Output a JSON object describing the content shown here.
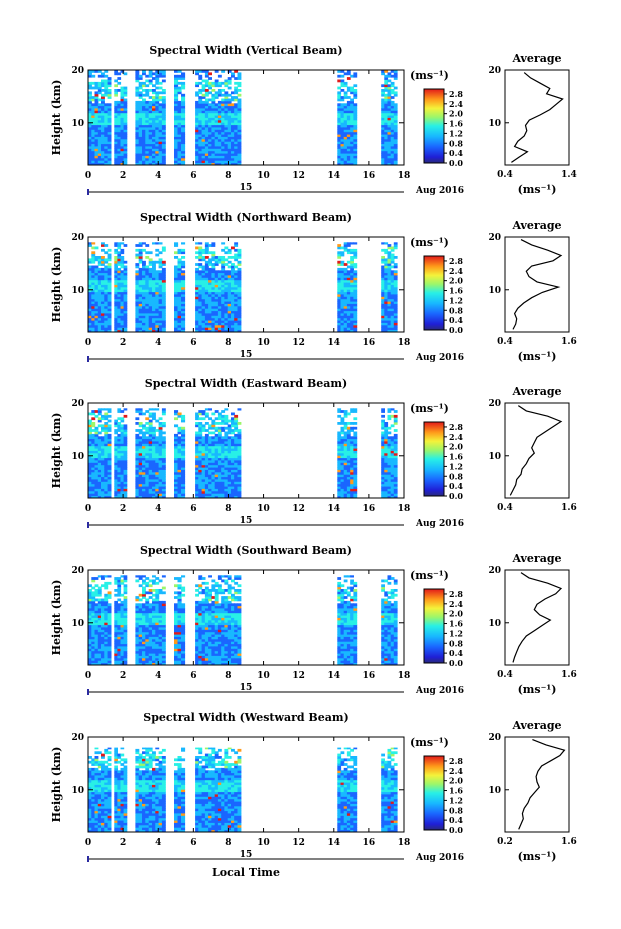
{
  "figure": {
    "date_label": "Aug 2016",
    "day_label": "15",
    "local_time_label": "Local Time",
    "colorbar_unit": "(ms⁻¹)",
    "average_title": "Average"
  },
  "chart_data": [
    {
      "type": "heatmap",
      "title": "Spectral Width (Vertical Beam)",
      "ylabel": "Height (km)",
      "xticks": [
        "0",
        "2",
        "4",
        "6",
        "8",
        "10",
        "12",
        "14",
        "16",
        "18"
      ],
      "xlim": [
        0,
        18
      ],
      "ylim": [
        2,
        20
      ],
      "yticks": [
        "10",
        "20"
      ],
      "data_time_segments_hours": [
        [
          0,
          1.3
        ],
        [
          1.5,
          2.2
        ],
        [
          2.7,
          4.4
        ],
        [
          4.9,
          5.5
        ],
        [
          6.1,
          8.7
        ],
        [
          14.2,
          15.3
        ],
        [
          16.7,
          17.6
        ]
      ],
      "data_height_top_km": 20,
      "colorbar": {
        "ticks": [
          "0.0",
          "0.4",
          "0.8",
          "1.2",
          "1.6",
          "2.0",
          "2.4",
          "2.8"
        ],
        "range": [
          0,
          3.0
        ]
      },
      "profile": {
        "title": "Average",
        "xlabel": "(ms⁻¹)",
        "xticks": [
          "0.4",
          "1.4"
        ],
        "xlim": [
          0.4,
          1.4
        ],
        "yticks": [
          "10",
          "20"
        ],
        "height_km": [
          2.5,
          3.5,
          4.5,
          5.5,
          6.5,
          7.5,
          8.5,
          9.5,
          10.5,
          11.5,
          12.5,
          13.5,
          14.5,
          15.5,
          16.5,
          17.5,
          18.5,
          19.5
        ],
        "values": [
          0.5,
          0.62,
          0.75,
          0.55,
          0.6,
          0.7,
          0.74,
          0.72,
          0.78,
          0.95,
          1.1,
          1.2,
          1.3,
          1.05,
          1.1,
          0.95,
          0.8,
          0.7
        ]
      }
    },
    {
      "type": "heatmap",
      "title": "Spectral Width (Northward Beam)",
      "ylabel": "Height (km)",
      "xticks": [
        "0",
        "2",
        "4",
        "6",
        "8",
        "10",
        "12",
        "14",
        "16",
        "18"
      ],
      "xlim": [
        0,
        18
      ],
      "ylim": [
        2,
        20
      ],
      "yticks": [
        "10",
        "20"
      ],
      "data_time_segments_hours": [
        [
          0,
          1.3
        ],
        [
          1.5,
          2.2
        ],
        [
          2.7,
          4.4
        ],
        [
          4.9,
          5.5
        ],
        [
          6.1,
          8.7
        ],
        [
          14.2,
          15.3
        ],
        [
          16.7,
          17.6
        ]
      ],
      "data_height_top_km": 19,
      "colorbar": {
        "ticks": [
          "0.0",
          "0.4",
          "0.8",
          "1.2",
          "1.6",
          "2.0",
          "2.4",
          "2.8"
        ],
        "range": [
          0,
          3.0
        ]
      },
      "profile": {
        "title": "Average",
        "xlabel": "(ms⁻¹)",
        "xticks": [
          "0.4",
          "1.6"
        ],
        "xlim": [
          0.4,
          1.6
        ],
        "yticks": [
          "10",
          "20"
        ],
        "height_km": [
          2.5,
          3.5,
          4.5,
          5.5,
          6.5,
          7.5,
          8.5,
          9.5,
          10.5,
          11.5,
          12.5,
          13.5,
          14.5,
          15.5,
          16.5,
          17.5,
          18.5,
          19.5
        ],
        "values": [
          0.55,
          0.6,
          0.62,
          0.58,
          0.64,
          0.75,
          0.9,
          1.1,
          1.4,
          1.0,
          0.85,
          0.8,
          0.9,
          1.3,
          1.45,
          1.2,
          0.9,
          0.7
        ]
      }
    },
    {
      "type": "heatmap",
      "title": "Spectral Width (Eastward Beam)",
      "ylabel": "Height (km)",
      "xticks": [
        "0",
        "2",
        "4",
        "6",
        "8",
        "10",
        "12",
        "14",
        "16",
        "18"
      ],
      "xlim": [
        0,
        18
      ],
      "ylim": [
        2,
        20
      ],
      "yticks": [
        "10",
        "20"
      ],
      "data_time_segments_hours": [
        [
          0,
          1.3
        ],
        [
          1.5,
          2.2
        ],
        [
          2.7,
          4.4
        ],
        [
          4.9,
          5.5
        ],
        [
          6.1,
          8.7
        ],
        [
          14.2,
          15.3
        ],
        [
          16.7,
          17.6
        ]
      ],
      "data_height_top_km": 19,
      "colorbar": {
        "ticks": [
          "0.0",
          "0.4",
          "0.8",
          "1.2",
          "1.6",
          "2.0",
          "2.4",
          "2.8"
        ],
        "range": [
          0,
          3.0
        ]
      },
      "profile": {
        "title": "Average",
        "xlabel": "",
        "xticks": [
          "0.4",
          "1.6"
        ],
        "xlim": [
          0.4,
          1.6
        ],
        "yticks": [
          "10",
          "20"
        ],
        "height_km": [
          2.5,
          3.5,
          4.5,
          5.5,
          6.5,
          7.5,
          8.5,
          9.5,
          10.5,
          11.5,
          12.5,
          13.5,
          14.5,
          15.5,
          16.5,
          17.5,
          18.5,
          19.5
        ],
        "values": [
          0.5,
          0.55,
          0.6,
          0.62,
          0.7,
          0.72,
          0.8,
          0.85,
          0.95,
          0.9,
          0.95,
          1.0,
          1.15,
          1.3,
          1.45,
          1.2,
          0.8,
          0.65
        ]
      }
    },
    {
      "type": "heatmap",
      "title": "Spectral Width (Southward Beam)",
      "ylabel": "Height (km)",
      "xticks": [
        "0",
        "2",
        "4",
        "6",
        "8",
        "10",
        "12",
        "14",
        "16",
        "18"
      ],
      "xlim": [
        0,
        18
      ],
      "ylim": [
        2,
        20
      ],
      "yticks": [
        "10",
        "20"
      ],
      "data_time_segments_hours": [
        [
          0,
          1.3
        ],
        [
          1.5,
          2.2
        ],
        [
          2.7,
          4.4
        ],
        [
          4.9,
          5.5
        ],
        [
          6.1,
          8.7
        ],
        [
          14.2,
          15.3
        ],
        [
          16.7,
          17.6
        ]
      ],
      "data_height_top_km": 19,
      "colorbar": {
        "ticks": [
          "0.0",
          "0.4",
          "0.8",
          "1.2",
          "1.6",
          "2.0",
          "2.4",
          "2.8"
        ],
        "range": [
          0,
          3.0
        ]
      },
      "profile": {
        "title": "Average",
        "xlabel": "(ms⁻¹)",
        "xticks": [
          "0.4",
          "1.6"
        ],
        "xlim": [
          0.4,
          1.6
        ],
        "yticks": [
          "10",
          "20"
        ],
        "height_km": [
          2.5,
          3.5,
          4.5,
          5.5,
          6.5,
          7.5,
          8.5,
          9.5,
          10.5,
          11.5,
          12.5,
          13.5,
          14.5,
          15.5,
          16.5,
          17.5,
          18.5,
          19.5
        ],
        "values": [
          0.55,
          0.58,
          0.62,
          0.66,
          0.72,
          0.8,
          0.95,
          1.1,
          1.25,
          1.05,
          0.95,
          1.0,
          1.15,
          1.35,
          1.45,
          1.2,
          0.85,
          0.7
        ]
      }
    },
    {
      "type": "heatmap",
      "title": "Spectral Width (Westward Beam)",
      "ylabel": "Height (km)",
      "xticks": [
        "0",
        "2",
        "4",
        "6",
        "8",
        "10",
        "12",
        "14",
        "16",
        "18"
      ],
      "xlim": [
        0,
        18
      ],
      "ylim": [
        2,
        20
      ],
      "yticks": [
        "10",
        "20"
      ],
      "data_time_segments_hours": [
        [
          0,
          1.3
        ],
        [
          1.5,
          2.2
        ],
        [
          2.7,
          4.4
        ],
        [
          4.9,
          5.5
        ],
        [
          6.1,
          8.7
        ],
        [
          14.2,
          15.3
        ],
        [
          16.7,
          17.6
        ]
      ],
      "data_height_top_km": 18,
      "colorbar": {
        "ticks": [
          "0.0",
          "0.4",
          "0.8",
          "1.2",
          "1.6",
          "2.0",
          "2.4",
          "2.8"
        ],
        "range": [
          0,
          3.0
        ]
      },
      "profile": {
        "title": "Average",
        "xlabel": "(ms⁻¹)",
        "xticks": [
          "0.2",
          "1.6"
        ],
        "xlim": [
          0.2,
          1.6
        ],
        "yticks": [
          "10",
          "20"
        ],
        "height_km": [
          2.5,
          3.5,
          4.5,
          5.5,
          6.5,
          7.5,
          8.5,
          9.5,
          10.5,
          11.5,
          12.5,
          13.5,
          14.5,
          15.5,
          16.5,
          17.5,
          18.5,
          19.5
        ],
        "values": [
          0.5,
          0.55,
          0.6,
          0.58,
          0.62,
          0.7,
          0.75,
          0.85,
          0.95,
          0.9,
          0.88,
          0.92,
          1.0,
          1.2,
          1.4,
          1.5,
          1.1,
          0.8
        ]
      }
    }
  ]
}
